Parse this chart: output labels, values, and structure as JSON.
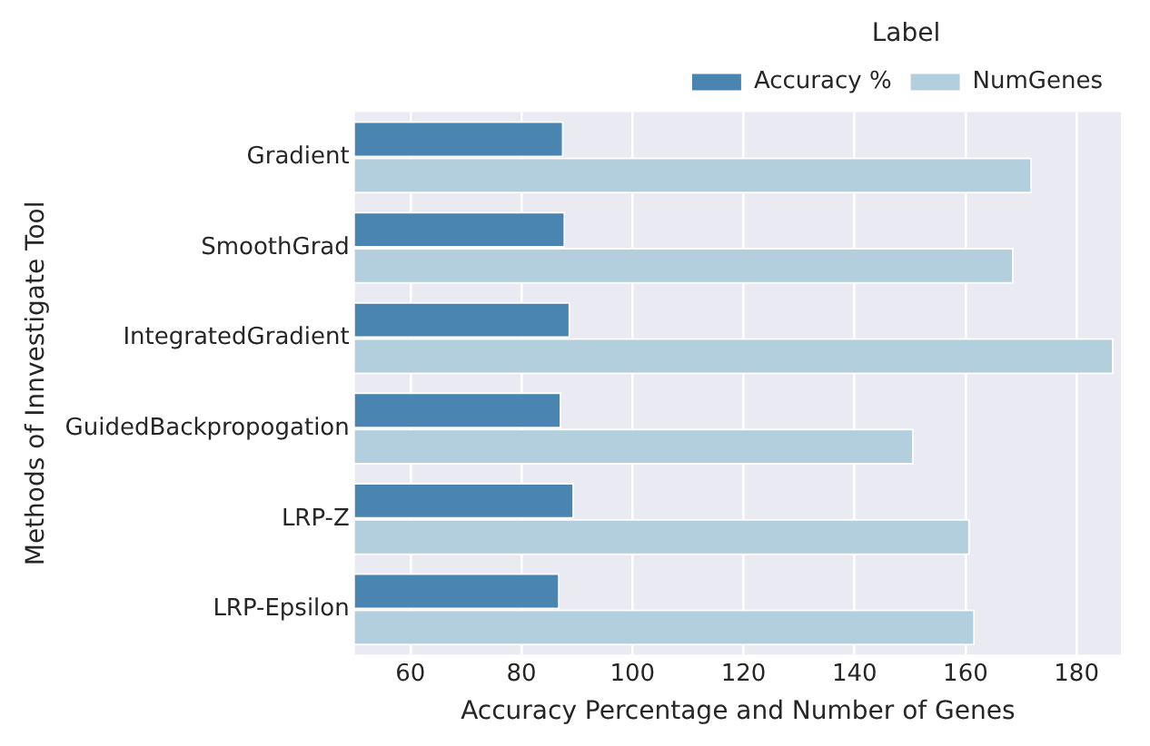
{
  "chart_data": {
    "type": "bar",
    "orientation": "horizontal",
    "xlabel": "Accuracy Percentage and Number of Genes",
    "ylabel": "Methods of Innvestigate Tool",
    "legend_title": "Label",
    "categories": [
      "Gradient",
      "SmoothGrad",
      "IntegratedGradient",
      "GuidedBackpropogation",
      "LRP-Z",
      "LRP-Epsilon"
    ],
    "series": [
      {
        "name": "Accuracy %",
        "color": "#4a84b0",
        "values": [
          87.6,
          87.9,
          88.8,
          87.2,
          89.5,
          86.9
        ]
      },
      {
        "name": "NumGenes",
        "color": "#b3cfde",
        "values": [
          172,
          168.7,
          186.7,
          150.7,
          160.8,
          161.7
        ]
      }
    ],
    "xlim": [
      50,
      188
    ],
    "xticks": [
      60,
      80,
      100,
      120,
      140,
      160,
      180
    ],
    "grid": "x",
    "legend": "top right"
  }
}
